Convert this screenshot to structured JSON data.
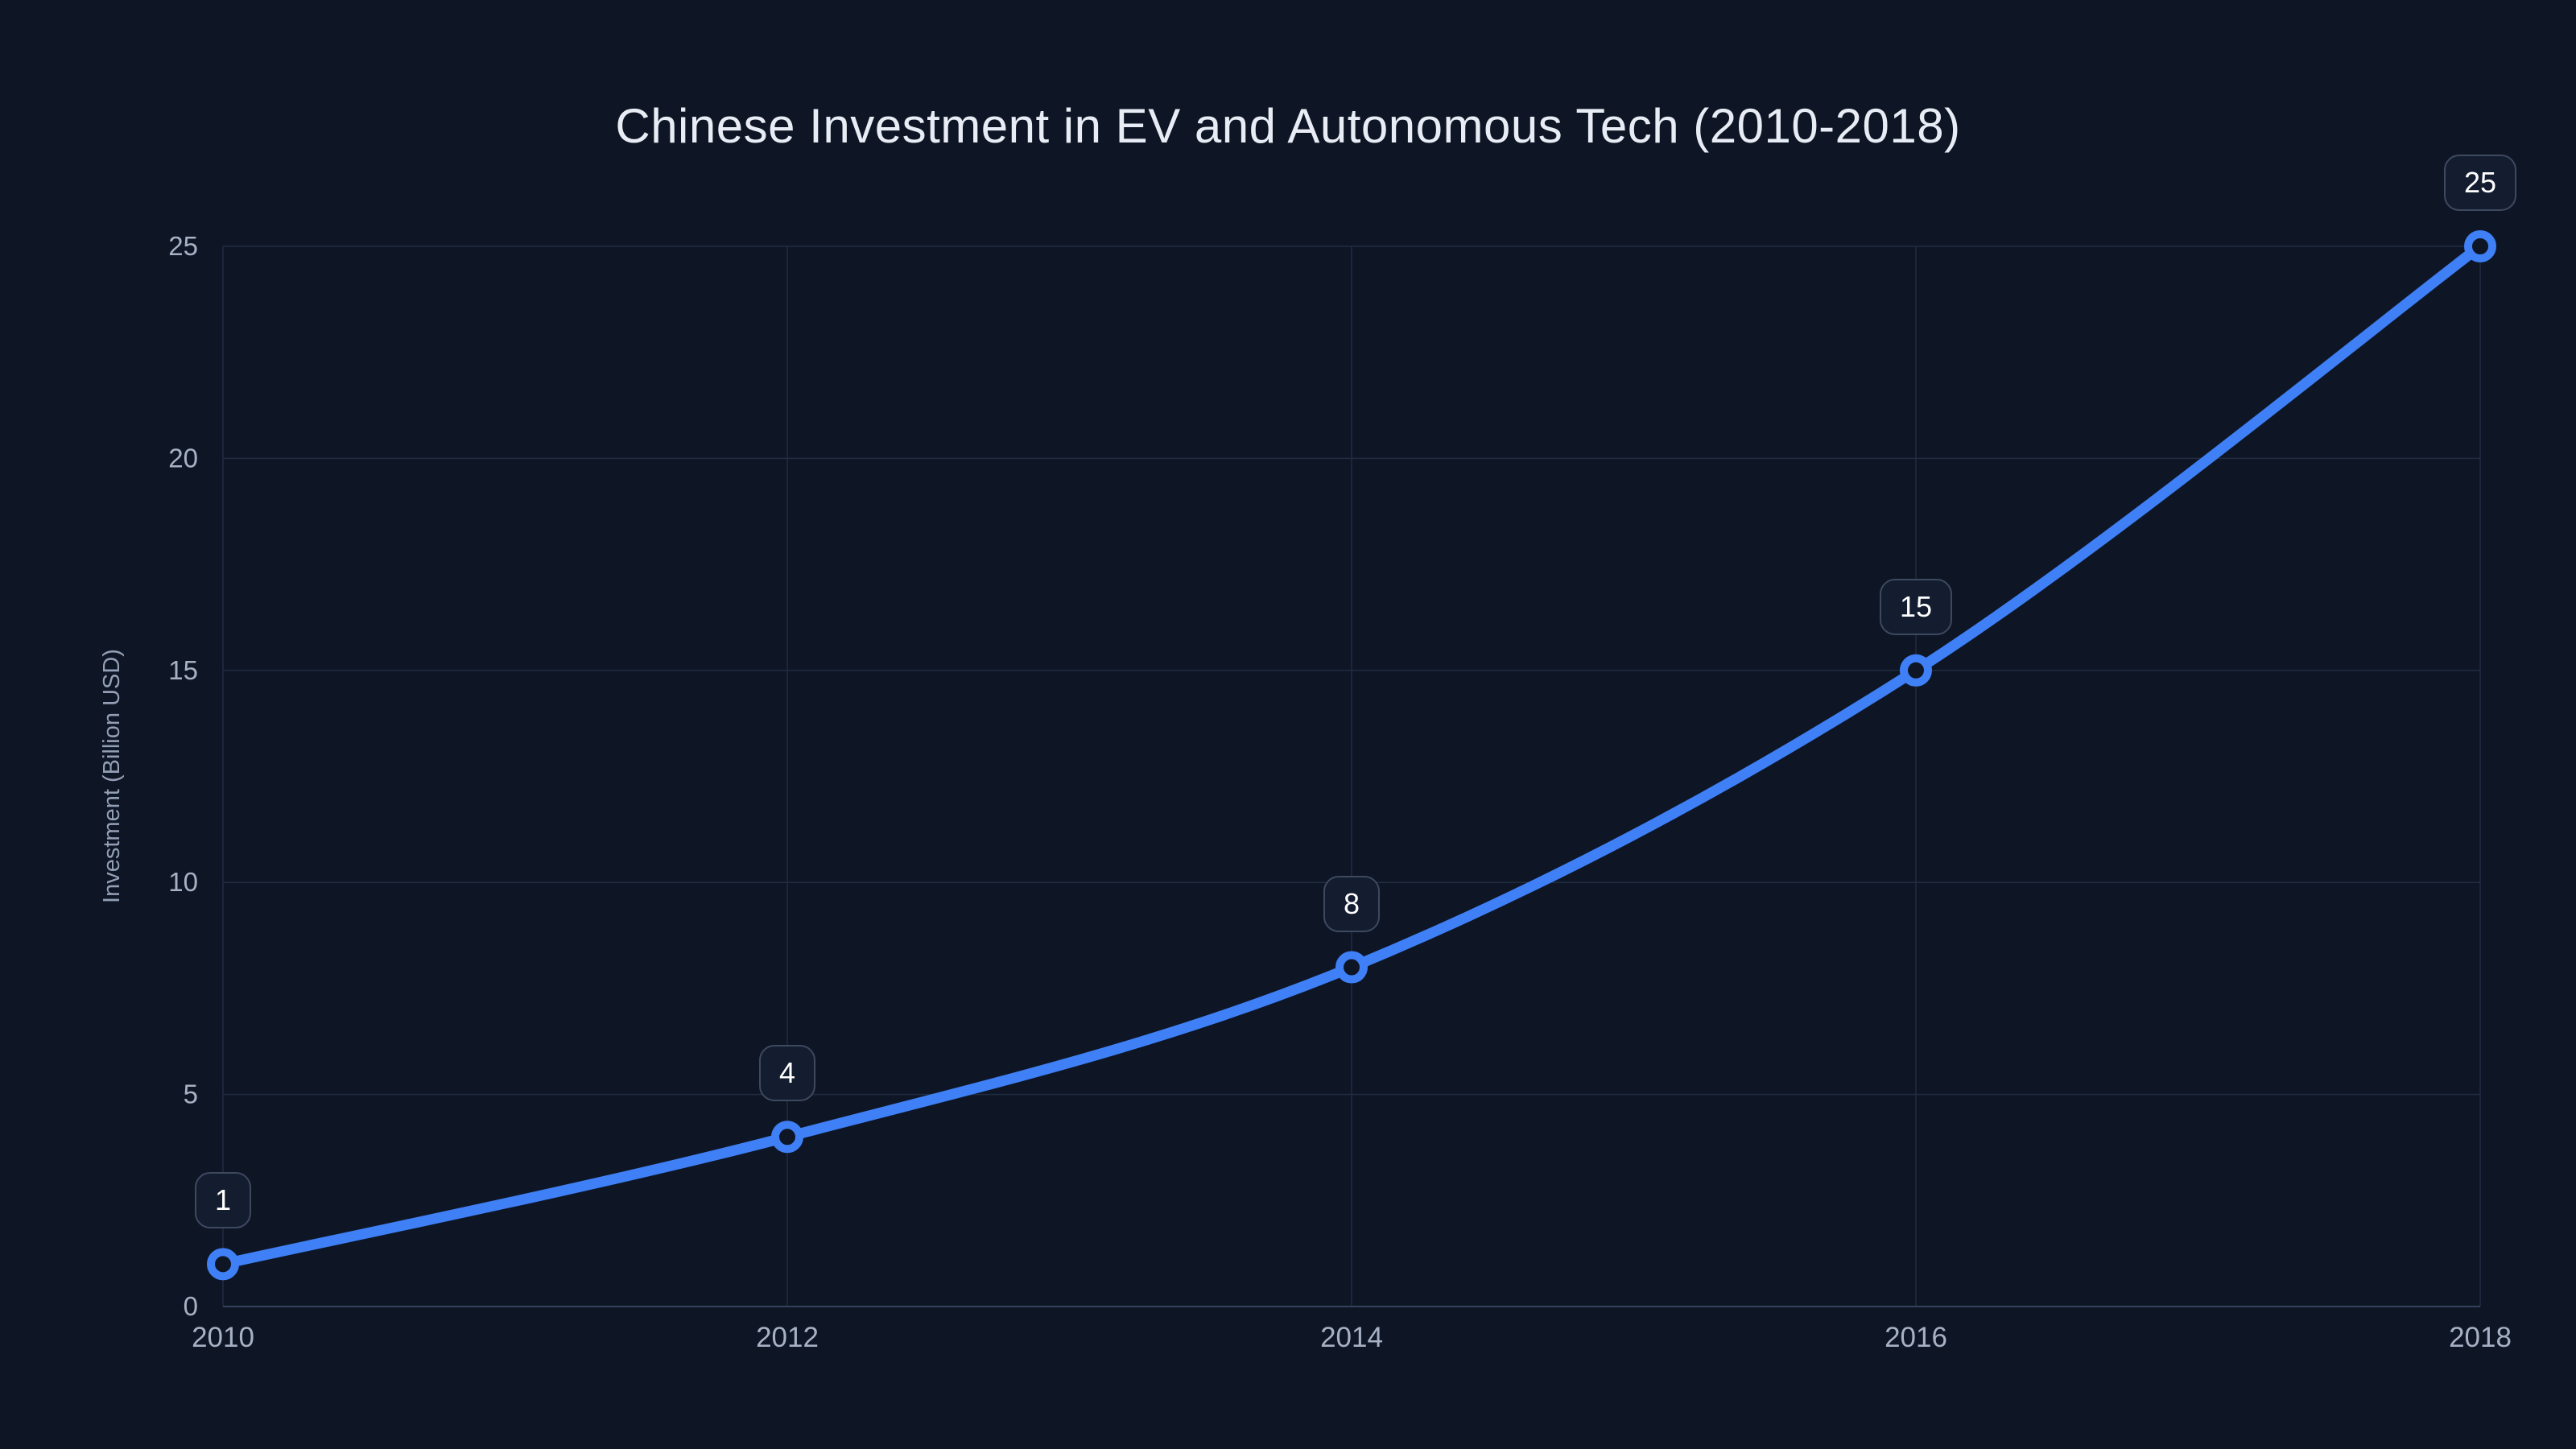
{
  "colors": {
    "background": "#0e1626",
    "line": "#3f80f7",
    "marker_ring": "#3f80f7",
    "marker_fill": "#0e1626",
    "grid": "#212c40",
    "axis_line": "#36425a",
    "tick_label": "#a6b1c3",
    "title": "#e8edf5",
    "axis_title": "#939fb4",
    "badge_bg": "#141c30",
    "badge_border": "#3d495e",
    "badge_text": "#ffffff"
  },
  "chart_data": {
    "type": "line",
    "title": "Chinese Investment in EV and Autonomous Tech (2010-2018)",
    "xlabel": "",
    "ylabel": "Investment (Billion USD)",
    "x": [
      2010,
      2012,
      2014,
      2016,
      2018
    ],
    "series": [
      {
        "name": "Investment",
        "values": [
          1,
          4,
          8,
          15,
          25
        ]
      }
    ],
    "point_labels": [
      "1",
      "4",
      "8",
      "15",
      "25"
    ],
    "x_tick_labels": [
      "2010",
      "2012",
      "2014",
      "2016",
      "2018"
    ],
    "y_tick_labels": [
      "0",
      "5",
      "10",
      "15",
      "20",
      "25"
    ],
    "y_ticks": [
      0,
      5,
      10,
      15,
      20,
      25
    ],
    "xlim": [
      2010,
      2018
    ],
    "ylim": [
      0,
      25
    ],
    "grid": true,
    "legend_position": "none",
    "line_shape": "spline",
    "markers": true
  }
}
